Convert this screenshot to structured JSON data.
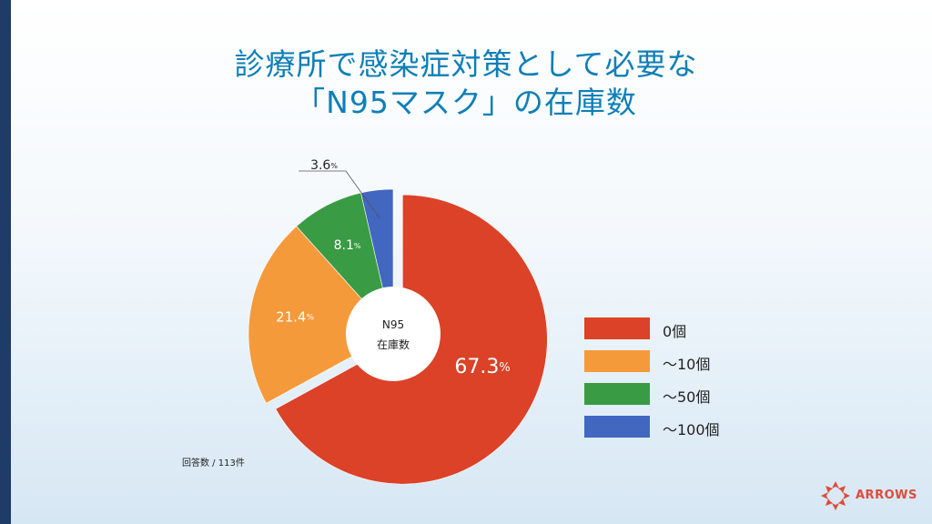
{
  "title": {
    "line1": "診療所で感染症対策として必要な",
    "line2": "「N95マスク」の在庫数"
  },
  "chart_data": {
    "type": "pie",
    "center_label": [
      "N95",
      "在庫数"
    ],
    "unit": "%",
    "slices": [
      {
        "label": "0個",
        "value": 67.3,
        "color": "#db4227",
        "value_label": "67.3",
        "exploded": true
      },
      {
        "label": "～10個",
        "value": 21.4,
        "color": "#f59a3b",
        "value_label": "21.4",
        "exploded": false
      },
      {
        "label": "～50個",
        "value": 8.1,
        "color": "#3a9b45",
        "value_label": "8.1",
        "exploded": false
      },
      {
        "label": "～100個",
        "value": 3.6,
        "color": "#4267c0",
        "value_label": "3.6",
        "exploded": false
      }
    ],
    "legend_position": "right"
  },
  "footnote": "回答数 / 113件",
  "logo": {
    "text": "ARROWS",
    "color": "#e04b3a"
  }
}
